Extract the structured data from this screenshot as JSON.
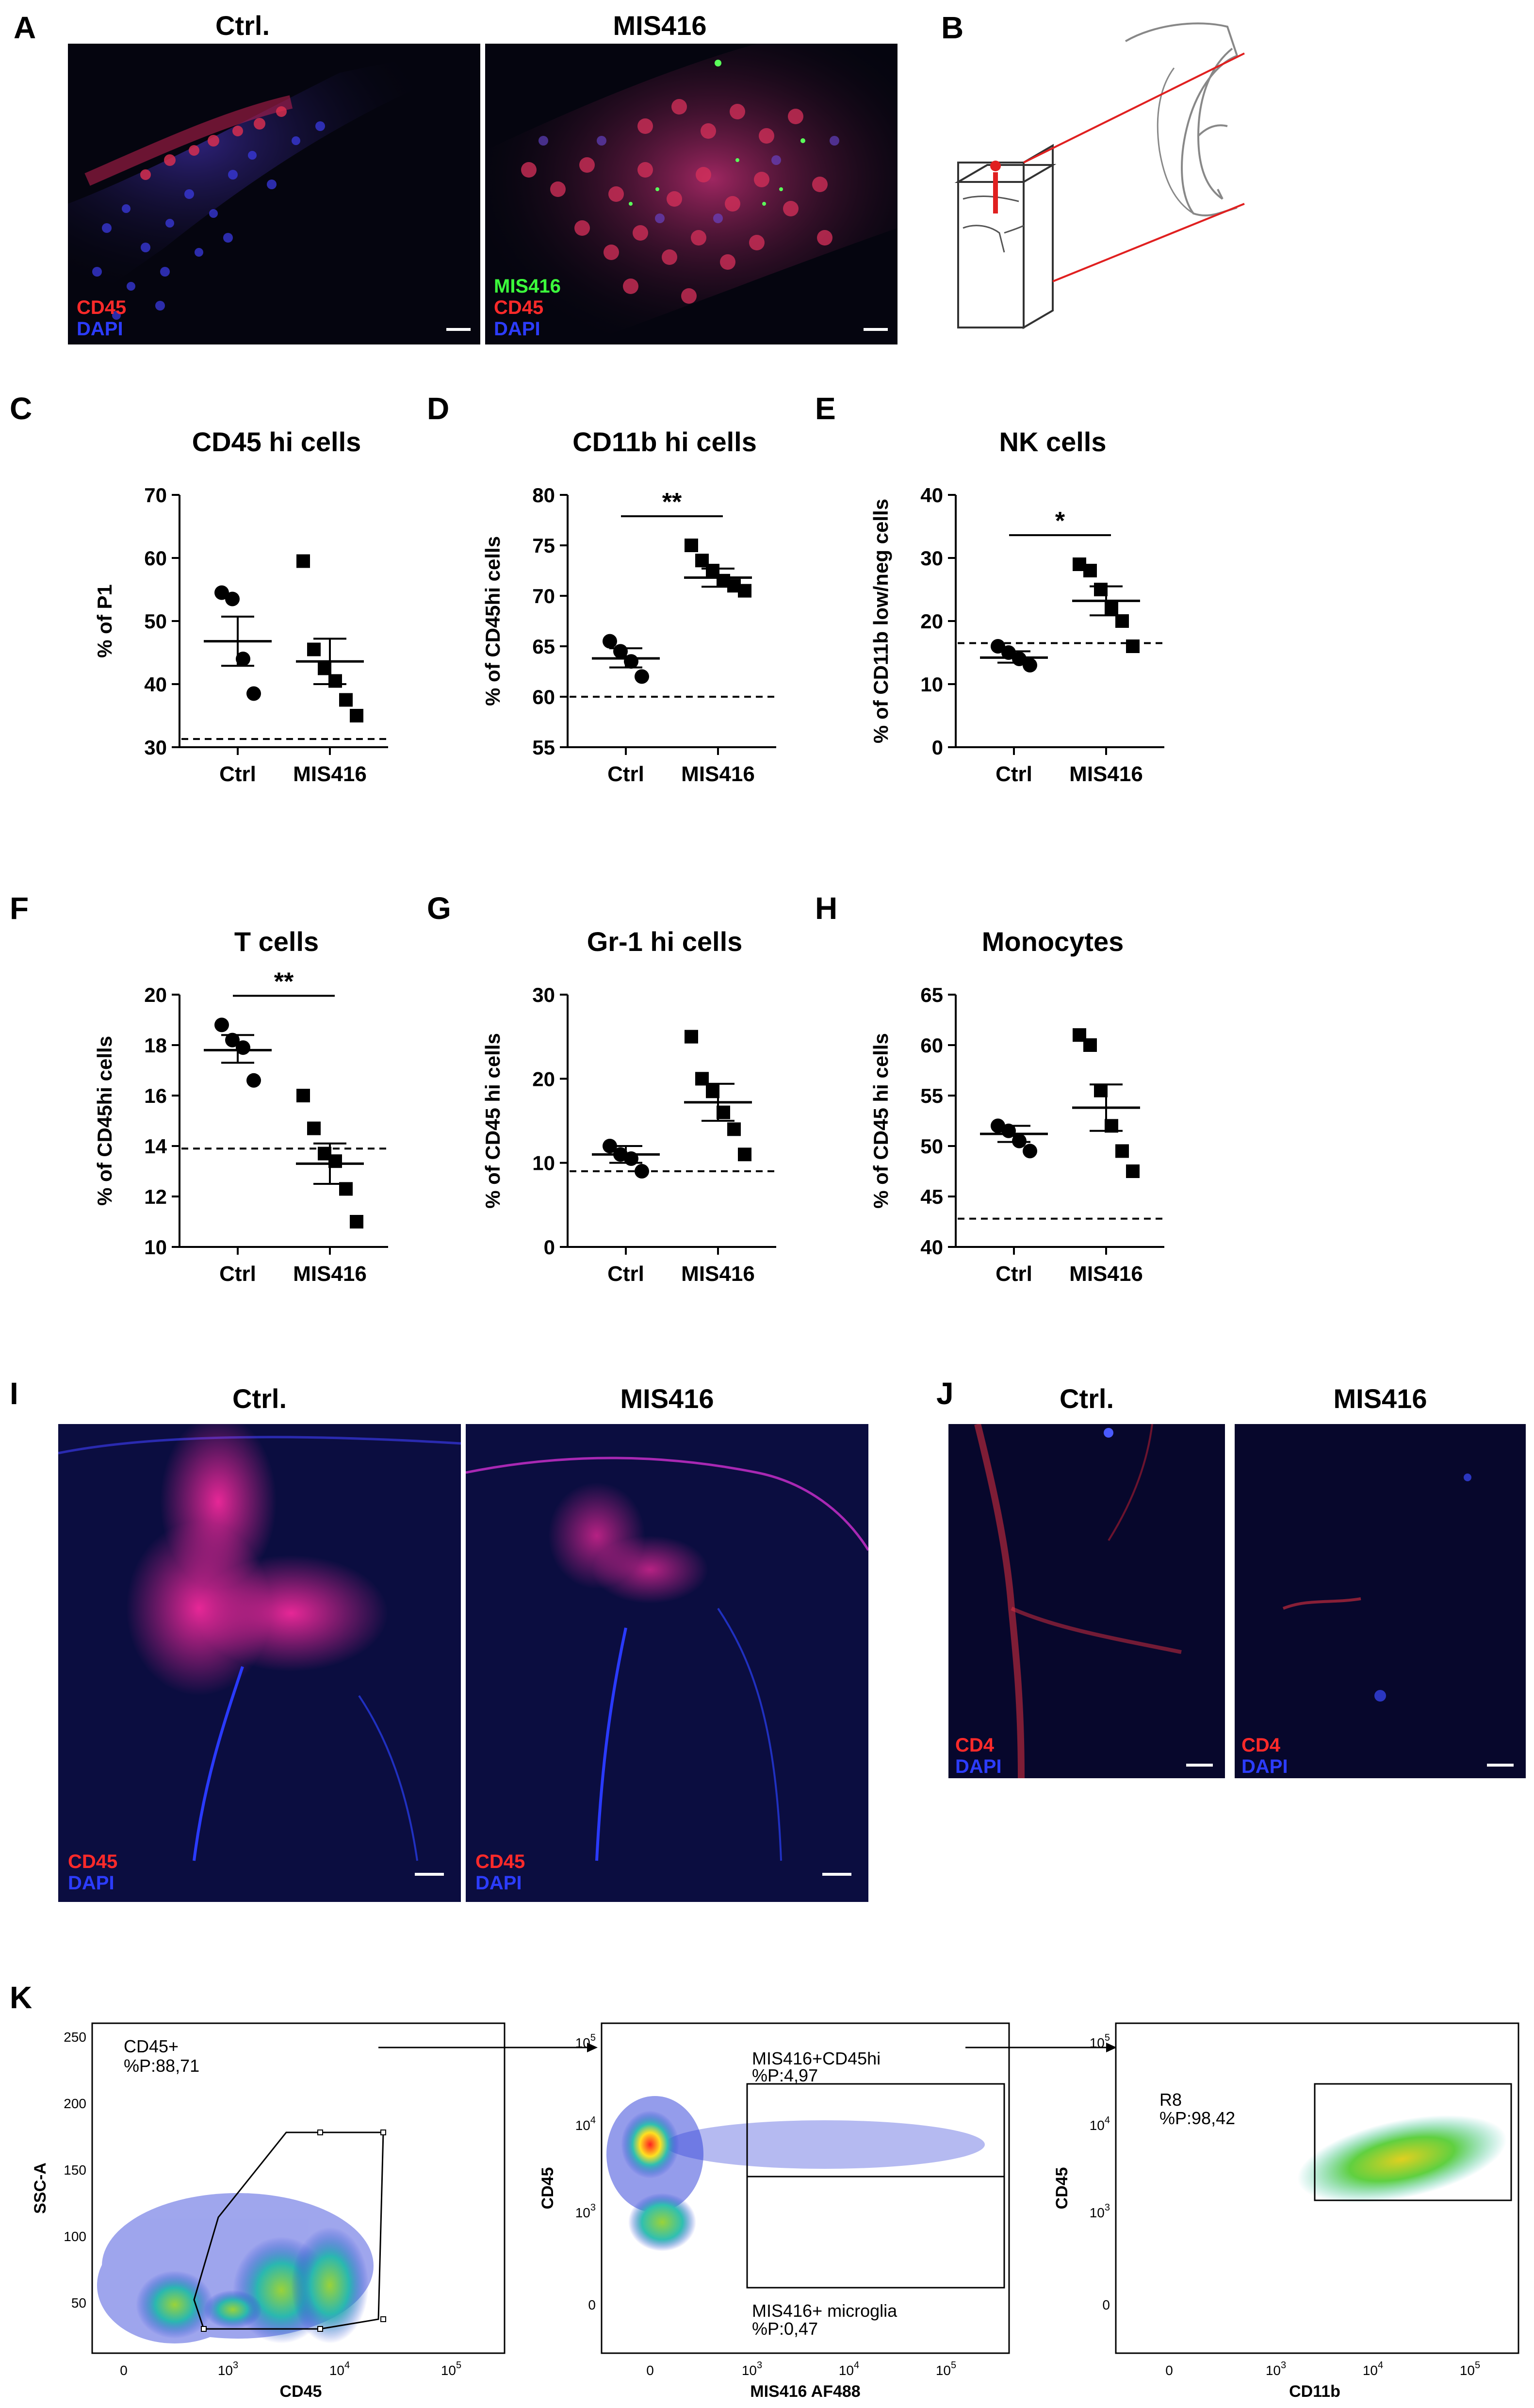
{
  "panels": {
    "A": {
      "label": "A",
      "title_left": "Ctrl.",
      "title_right": "MIS416",
      "left_legend": [
        "CD45",
        "DAPI"
      ],
      "right_legend": [
        "MIS416",
        "CD45",
        "DAPI"
      ]
    },
    "B": {
      "label": "B"
    },
    "I": {
      "label": "I",
      "title_left": "Ctrl.",
      "title_right": "MIS416",
      "legend": [
        "CD45",
        "DAPI"
      ]
    },
    "J": {
      "label": "J",
      "title_left": "Ctrl.",
      "title_right": "MIS416",
      "legend": [
        "CD4",
        "DAPI"
      ]
    },
    "K": {
      "label": "K",
      "plot1": {
        "gate": "CD45+",
        "pct": "%P:88,71",
        "xlabel": "CD45",
        "ylabel": "SSC-A",
        "yticks": [
          "250",
          "200",
          "150",
          "100",
          "50"
        ],
        "xticks": [
          "0",
          "10",
          "10",
          "10"
        ]
      },
      "plot2": {
        "gate_top": "MIS416+CD45hi",
        "pct_top": "%P:4,97",
        "gate_bottom": "MIS416+ microglia",
        "pct_bottom": "%P:0,47",
        "xlabel": "MIS416 AF488",
        "ylabel": "CD45"
      },
      "plot3": {
        "gate": "R8",
        "pct": "%P:98,42",
        "xlabel": "CD11b",
        "ylabel": "CD45"
      },
      "exp_labels": {
        "ticks_base": "10",
        "exp3": "3",
        "exp4": "4",
        "exp5": "5",
        "zero": "0"
      }
    }
  },
  "chart_data": [
    {
      "type": "scatter",
      "label": "C",
      "title": "CD45 hi cells",
      "ylabel": "% of P1",
      "categories": [
        "Ctrl",
        "MIS416"
      ],
      "ylim": [
        30,
        70
      ],
      "yticks": [
        "30",
        "40",
        "50",
        "60",
        "70"
      ],
      "series": [
        {
          "values": [
            54.5,
            53.5,
            44,
            38.5
          ]
        },
        {
          "values": [
            59.5,
            45.5,
            42.5,
            40.5,
            37.5,
            35
          ]
        }
      ],
      "mean": [
        46.8,
        43.6
      ],
      "sem_high": [
        50.7,
        47.2
      ],
      "sem_low": [
        42.9,
        40.0
      ],
      "dashed_line": 31.3,
      "significance": ""
    },
    {
      "type": "scatter",
      "label": "D",
      "title": "CD11b hi cells",
      "ylabel": "% of CD45hi cells",
      "categories": [
        "Ctrl",
        "MIS416"
      ],
      "ylim": [
        55,
        80
      ],
      "yticks": [
        "55",
        "60",
        "65",
        "70",
        "75",
        "80"
      ],
      "series": [
        {
          "values": [
            65.5,
            64.5,
            63.5,
            62
          ]
        },
        {
          "values": [
            75,
            73.5,
            72.5,
            71.5,
            71,
            70.5
          ]
        }
      ],
      "mean": [
        63.8,
        71.8
      ],
      "sem_high": [
        64.8,
        72.7
      ],
      "sem_low": [
        62.9,
        70.9
      ],
      "dashed_line": 60,
      "significance": "**"
    },
    {
      "type": "scatter",
      "label": "E",
      "title": "NK cells",
      "ylabel": "% of CD11b low/neg cells",
      "categories": [
        "Ctrl",
        "MIS416"
      ],
      "ylim": [
        0,
        40
      ],
      "yticks": [
        "0",
        "10",
        "20",
        "30",
        "40"
      ],
      "series": [
        {
          "values": [
            16,
            15,
            14,
            13
          ]
        },
        {
          "values": [
            29,
            28,
            25,
            22,
            20,
            16
          ]
        }
      ],
      "mean": [
        14.2,
        23.2
      ],
      "sem_high": [
        15.2,
        25.5
      ],
      "sem_low": [
        13.4,
        20.9
      ],
      "dashed_line": 16.5,
      "significance": "*"
    },
    {
      "type": "scatter",
      "label": "F",
      "title": "T cells",
      "ylabel": "% of CD45hi cells",
      "categories": [
        "Ctrl",
        "MIS416"
      ],
      "ylim": [
        10,
        20
      ],
      "yticks": [
        "10",
        "12",
        "14",
        "16",
        "18",
        "20"
      ],
      "series": [
        {
          "values": [
            18.8,
            18.2,
            17.9,
            16.6
          ]
        },
        {
          "values": [
            16,
            14.7,
            13.7,
            13.4,
            12.3,
            11
          ]
        }
      ],
      "mean": [
        17.8,
        13.3
      ],
      "sem_high": [
        18.4,
        14.1
      ],
      "sem_low": [
        17.3,
        12.5
      ],
      "dashed_line": 13.9,
      "significance": "**"
    },
    {
      "type": "scatter",
      "label": "G",
      "title": "Gr-1 hi cells",
      "ylabel": "% of CD45 hi cells",
      "categories": [
        "Ctrl",
        "MIS416"
      ],
      "ylim": [
        0,
        30
      ],
      "yticks": [
        "0",
        "10",
        "20",
        "30"
      ],
      "series": [
        {
          "values": [
            12,
            11,
            10.5,
            9
          ]
        },
        {
          "values": [
            25,
            20,
            18.5,
            16,
            14,
            11
          ]
        }
      ],
      "mean": [
        11.0,
        17.2
      ],
      "sem_high": [
        12.0,
        19.4
      ],
      "sem_low": [
        10.0,
        15.0
      ],
      "dashed_line": 9,
      "significance": ""
    },
    {
      "type": "scatter",
      "label": "H",
      "title": "Monocytes",
      "ylabel": "% of CD45 hi cells",
      "categories": [
        "Ctrl",
        "MIS416"
      ],
      "ylim": [
        40,
        65
      ],
      "yticks": [
        "40",
        "45",
        "50",
        "55",
        "60",
        "65"
      ],
      "series": [
        {
          "values": [
            52,
            51.5,
            50.5,
            49.5
          ]
        },
        {
          "values": [
            61,
            60,
            55.5,
            52,
            49.5,
            47.5
          ]
        }
      ],
      "mean": [
        51.2,
        53.8
      ],
      "sem_high": [
        52.0,
        56.1
      ],
      "sem_low": [
        50.4,
        51.5
      ],
      "dashed_line": 42.8,
      "significance": ""
    }
  ],
  "colors": {
    "cd45": "#ff2a2a",
    "dapi": "#2c3cff",
    "mis416": "#3cff3c",
    "axis": "#000000",
    "scale_line": "#e02020"
  }
}
